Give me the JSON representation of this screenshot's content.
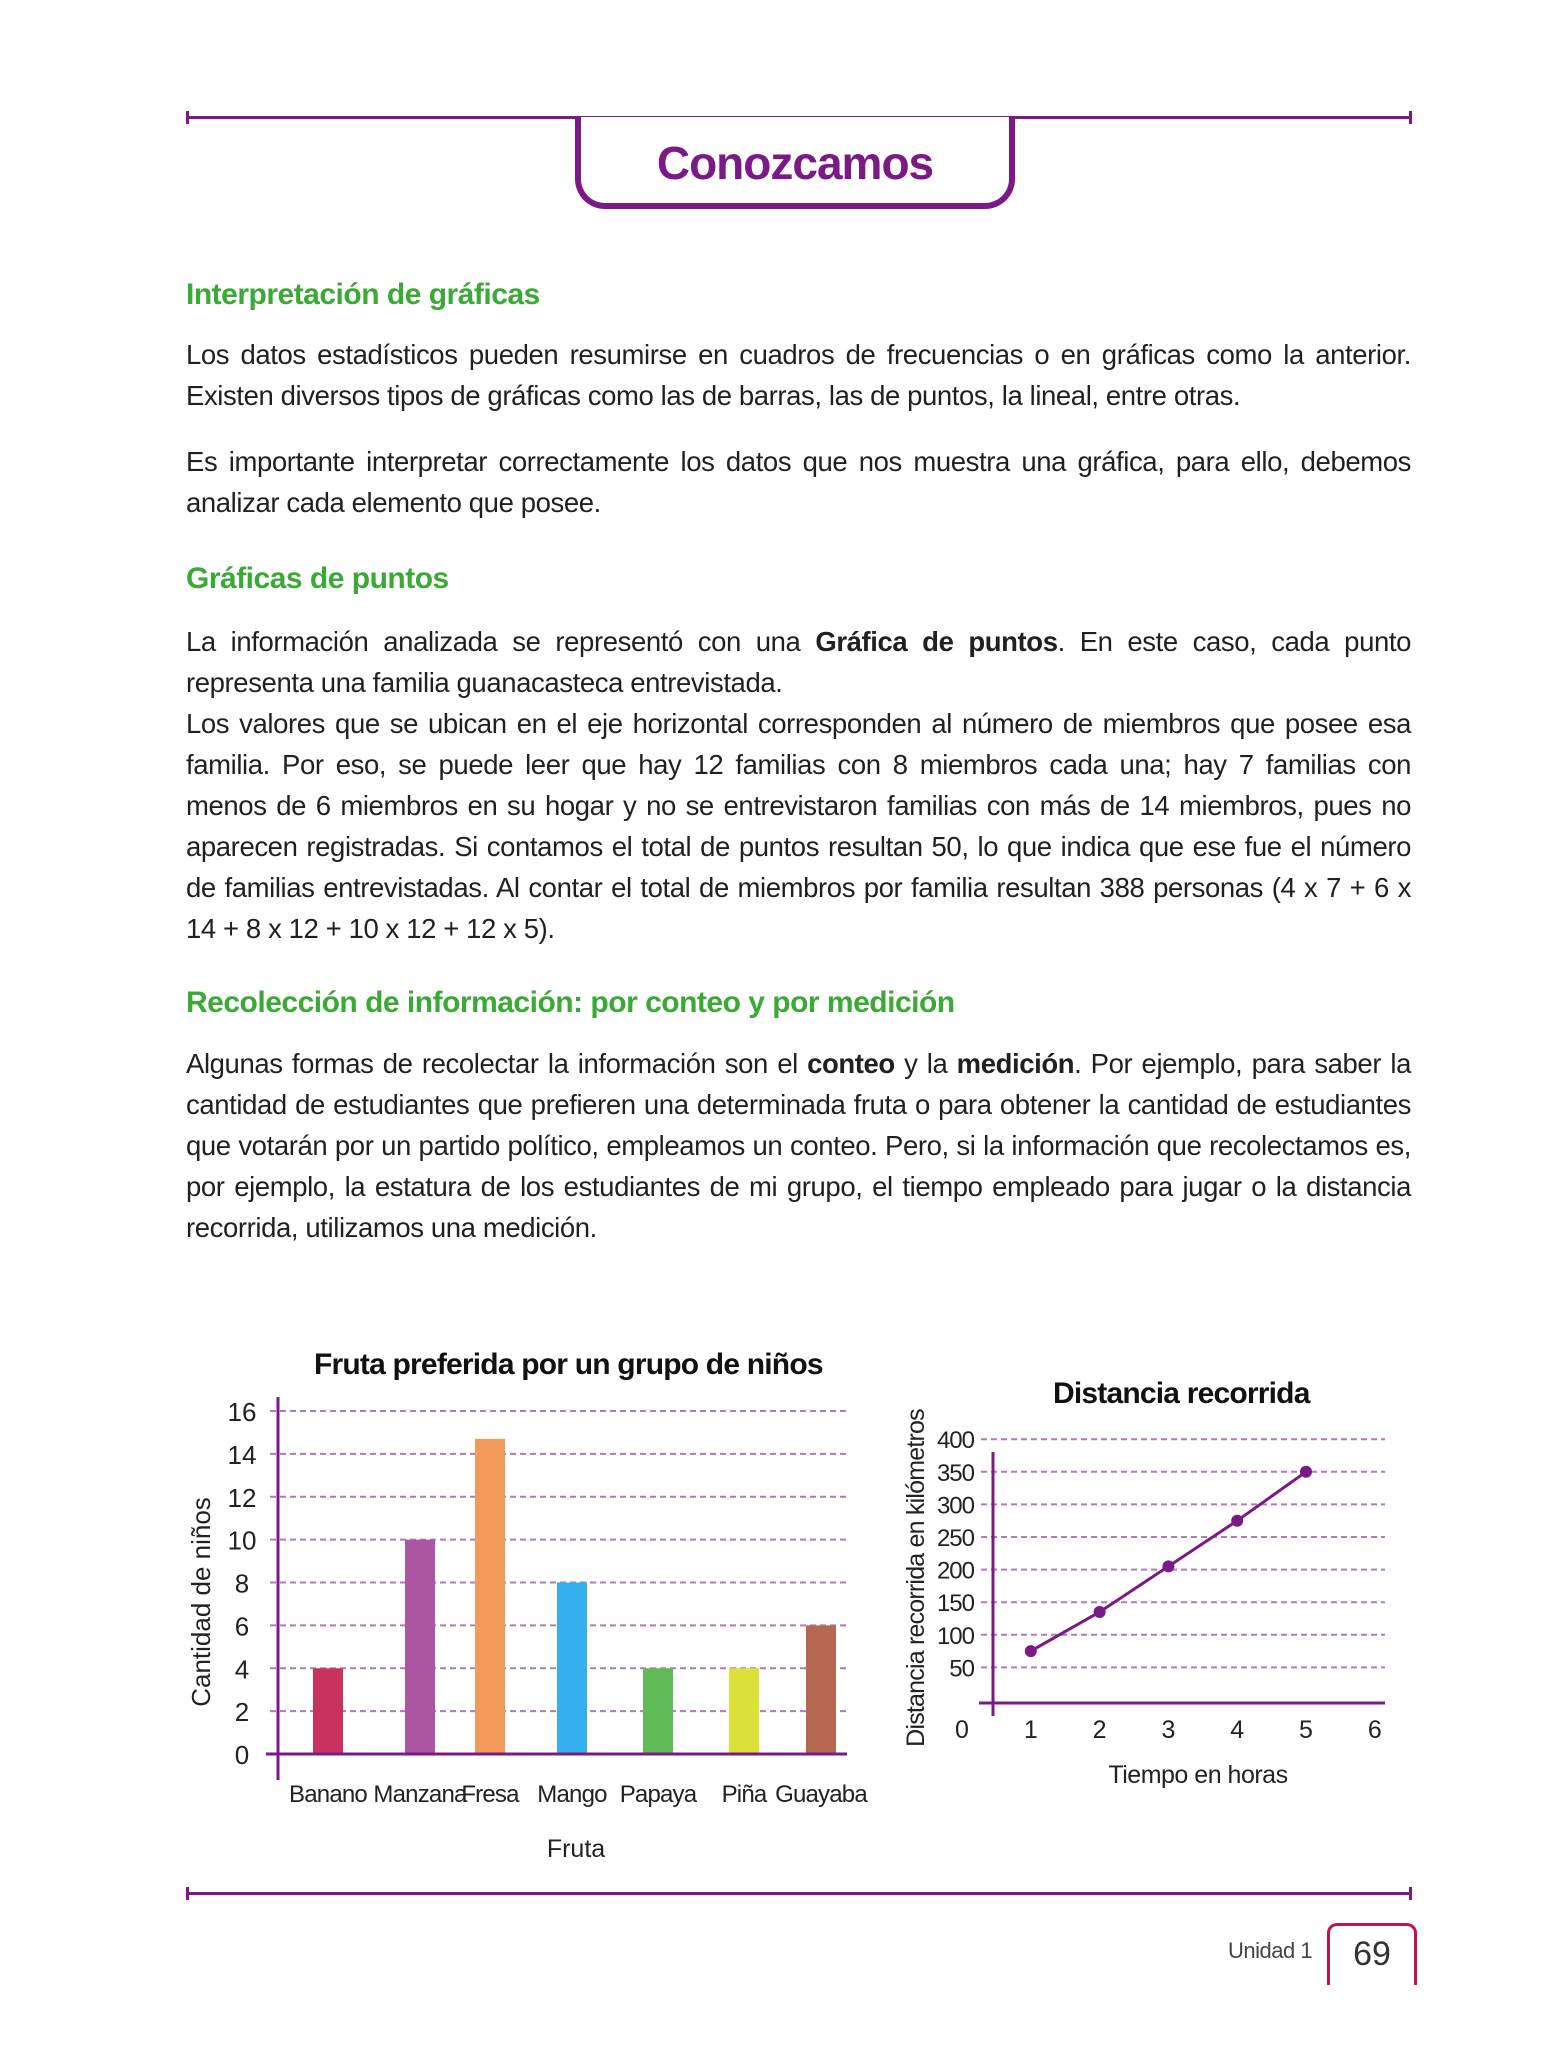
{
  "header": {
    "title": "Conozcamos"
  },
  "sections": [
    {
      "heading": "Interpretación de gráficas",
      "paragraphs": [
        [
          {
            "t": "Los datos estadísticos pueden resumirse en cuadros de frecuencias o en gráficas como la anterior. Existen diversos tipos de gráficas como las de barras, las de puntos, la lineal, entre otras."
          }
        ],
        [
          {
            "t": "Es importante interpretar correctamente los datos que nos muestra una gráfica, para ello, debemos analizar cada elemento que posee."
          }
        ]
      ]
    },
    {
      "heading": "Gráficas de puntos",
      "paragraphs": [
        [
          {
            "t": "La información analizada se representó con una "
          },
          {
            "t": "Gráfica de puntos",
            "b": true
          },
          {
            "t": ". En este caso, cada punto representa una familia guanacasteca entrevistada."
          }
        ],
        [
          {
            "t": "Los valores que se ubican en el eje horizontal corresponden al número de miembros que posee esa familia. Por eso, se puede leer que hay 12 familias con 8 miembros cada una; hay 7 familias con menos de 6 miembros en su hogar y no se entrevistaron familias con más de 14 miembros, pues no aparecen registradas. Si contamos el total de puntos resultan 50, lo que indica que ese fue el número de familias entrevistadas. Al contar el total de miembros por familia resultan 388 personas (4 x 7 + 6 x 14 + 8 x 12 + 10 x 12 + 12 x 5)."
          }
        ]
      ]
    },
    {
      "heading": "Recolección de información: por conteo y por medición",
      "paragraphs": [
        [
          {
            "t": "Algunas formas de recolectar la información son el "
          },
          {
            "t": "conteo",
            "b": true
          },
          {
            "t": " y la "
          },
          {
            "t": "medición",
            "b": true
          },
          {
            "t": ". Por ejemplo, para saber la cantidad de estudiantes que prefieren una determinada fruta o para obtener la cantidad de estudiantes que votarán por un partido político, empleamos un conteo. Pero, si la información que recolectamos es, por ejemplo, la estatura de los estudiantes de mi grupo, el tiempo empleado para jugar o la distancia recorrida, utilizamos una medición."
          }
        ]
      ]
    }
  ],
  "chart_data": [
    {
      "type": "bar",
      "title": "Fruta preferida por un grupo de niños",
      "xlabel": "Fruta",
      "ylabel": "Cantidad de niños",
      "categories": [
        "Banano",
        "Manzana",
        "Fresa",
        "Mango",
        "Papaya",
        "Piña",
        "Guayaba"
      ],
      "values": [
        4,
        10,
        14.7,
        8,
        4,
        4,
        6
      ],
      "colors": [
        "#c8325f",
        "#ac55a2",
        "#f29a5a",
        "#35b0ee",
        "#5fba57",
        "#dde23a",
        "#b5684f"
      ],
      "ylim": [
        0,
        16
      ],
      "yticks": [
        "0",
        "2",
        "4",
        "6",
        "8",
        "10",
        "12",
        "14",
        "16"
      ],
      "grid": "dashed horizontal",
      "axis_color": "#7b1a86"
    },
    {
      "type": "line",
      "title": "Distancia recorrida",
      "xlabel": "Tiempo en horas",
      "ylabel": "Distancia recorrida en kilómetros",
      "x": [
        1,
        2,
        3,
        4,
        5
      ],
      "y": [
        75,
        135,
        205,
        275,
        350
      ],
      "xticks": [
        "0",
        "1",
        "2",
        "3",
        "4",
        "5",
        "6"
      ],
      "yticks": [
        "50",
        "100",
        "150",
        "200",
        "250",
        "300",
        "350",
        "400"
      ],
      "xlim": [
        0,
        6
      ],
      "ylim": [
        0,
        400
      ],
      "grid": "dashed horizontal",
      "color": "#7b1a86"
    }
  ],
  "footer": {
    "unit": "Unidad 1",
    "page": "69"
  }
}
